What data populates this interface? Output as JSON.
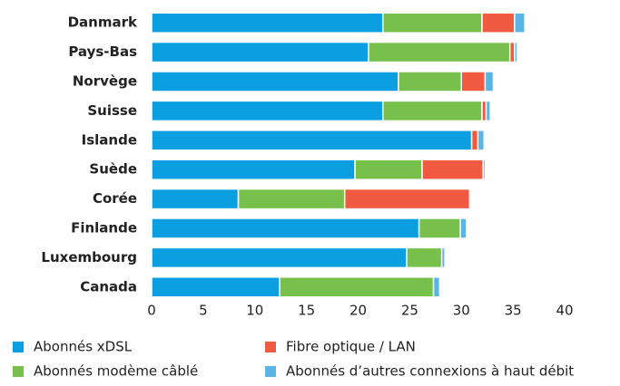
{
  "chart_data": {
    "type": "stacked-bar-horizontal",
    "categories": [
      "Danmark",
      "Pays-Bas",
      "Norvège",
      "Suisse",
      "Islande",
      "Suède",
      "Corée",
      "Finlande",
      "Luxembourg",
      "Canada"
    ],
    "series": [
      {
        "name": "Abonnés xDSL",
        "color": "#0b9ee0",
        "values": [
          22.4,
          21.0,
          23.9,
          22.4,
          31.0,
          19.7,
          8.4,
          25.9,
          24.7,
          12.4
        ]
      },
      {
        "name": "Abonnés modème câblé",
        "color": "#76c04b",
        "values": [
          9.6,
          13.7,
          6.1,
          9.6,
          0,
          6.5,
          10.3,
          4.0,
          3.4,
          14.9
        ]
      },
      {
        "name": "Fibre optique / LAN",
        "color": "#f05a40",
        "values": [
          3.15,
          0.45,
          2.3,
          0.4,
          0.6,
          5.9,
          12.1,
          0,
          0,
          0
        ]
      },
      {
        "name": "Abonnés d’autres connexions à haut débit",
        "color": "#5ab4e6",
        "values": [
          1.0,
          0.25,
          0.8,
          0.4,
          0.6,
          0.2,
          0,
          0.6,
          0.3,
          0.6
        ]
      }
    ],
    "xlim": [
      0,
      40
    ],
    "xticks": [
      0,
      5,
      10,
      15,
      20,
      25,
      30,
      35,
      40
    ],
    "grid": false
  }
}
